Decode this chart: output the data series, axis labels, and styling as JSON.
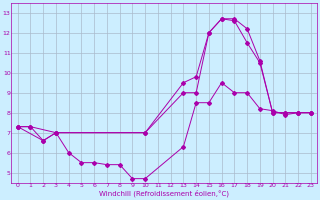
{
  "xlabel": "Windchill (Refroidissement éolien,°C)",
  "bg_color": "#cceeff",
  "grid_color": "#aabbcc",
  "line_color": "#aa00aa",
  "xlim": [
    -0.5,
    23.5
  ],
  "ylim": [
    4.5,
    13.5
  ],
  "xticks": [
    0,
    1,
    2,
    3,
    4,
    5,
    6,
    7,
    8,
    9,
    10,
    11,
    12,
    13,
    14,
    15,
    16,
    17,
    18,
    19,
    20,
    21,
    22,
    23
  ],
  "yticks": [
    5,
    6,
    7,
    8,
    9,
    10,
    11,
    12,
    13
  ],
  "lines": [
    {
      "x": [
        0,
        1,
        2,
        3,
        10,
        13,
        14,
        15,
        16,
        17,
        18,
        19,
        20,
        21,
        22,
        23
      ],
      "y": [
        7.3,
        7.3,
        6.6,
        7.0,
        7.0,
        9.5,
        9.8,
        12.0,
        12.7,
        12.7,
        12.2,
        10.6,
        8.0,
        8.0,
        8.0,
        8.0
      ]
    },
    {
      "x": [
        0,
        1,
        3,
        10,
        13,
        14,
        15,
        16,
        17,
        18,
        19,
        20,
        21,
        22,
        23
      ],
      "y": [
        7.3,
        7.3,
        7.0,
        7.0,
        9.0,
        9.0,
        12.0,
        12.7,
        12.6,
        11.5,
        10.5,
        8.0,
        8.0,
        8.0,
        8.0
      ]
    },
    {
      "x": [
        0,
        2,
        3,
        4,
        5,
        6,
        7,
        8,
        9,
        10,
        13,
        14,
        15,
        16,
        17,
        18,
        19,
        20,
        21,
        22,
        23
      ],
      "y": [
        7.3,
        6.6,
        7.0,
        6.0,
        5.5,
        5.5,
        5.4,
        5.4,
        4.7,
        4.7,
        6.3,
        8.5,
        8.5,
        9.5,
        9.0,
        9.0,
        8.2,
        8.1,
        7.9,
        8.0,
        8.0
      ]
    }
  ]
}
